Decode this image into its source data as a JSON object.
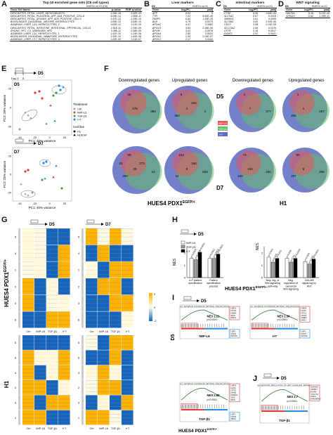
{
  "panels": {
    "A": "A",
    "B": "B",
    "C": "C",
    "D": "D",
    "E": "E",
    "F": "F",
    "G": "G",
    "H": "H",
    "I": "I",
    "J": "J"
  },
  "tableA": {
    "title": "Top-10 enriched gene sets (C8 cell types)",
    "group": "HUES4 vs H1 (D5)",
    "cols": [
      "Gene Set Name",
      "p-value",
      "FDR q-value"
    ],
    "rows": [
      [
        "DESCARTES_FETAL_LIVER_HEPATOBLASTS",
        "4.26E-18",
        "3.00E-15"
      ],
      [
        "DESCARTES_FETAL_PLACENTA_AFP_ALB_POSITIVE_CELLS",
        "8.09E-14",
        "2.85E-11"
      ],
      [
        "DESCARTES_FETAL_SPLEEN_AFP_ALB_POSITIVE_CELLS",
        "4.47E-13",
        "1.05E-10"
      ],
      [
        "BUSSLINGER_DUODENAL_MATURE_ENTEROCYTES",
        "2.00E-12",
        "3.53E-10"
      ],
      [
        "AIZARANI_LIVER_C14_HEPATOCYTES_2",
        "3.62E-12",
        "5.11E-10"
      ],
      [
        "DESCARTES_FETAL_INTESTINE_INTESTINAL_EPITHELIAL_CELLS",
        "2.51E-11",
        "2.94E-09"
      ],
      [
        "ZHONG_PFC_C3_UNKNOWN_NPC",
        "3.36E-11",
        "3.38E-09"
      ],
      [
        "AIZARANI_LIVER_C11_HEPATOCYTES_1",
        "1.41E-10",
        "1.24E-08"
      ],
      [
        "BUSSLINGER_DUODENAL_IMMATURE_ENTEROCYTES",
        "2.32E-10",
        "1.82E-08"
      ],
      [
        "AIZARANI_LIVER_C17_HEPATOCYTES_3",
        "1.43E-09",
        "1.01E-07"
      ]
    ]
  },
  "tableB": {
    "title": "Liver markers",
    "d": "D5",
    "group": "HUES4 vs H1",
    "cols": [
      "Gene",
      "log2FC",
      "padj"
    ],
    "rows": [
      [
        "AFP",
        "8.04",
        "0"
      ],
      [
        "TTR",
        "7.22",
        "5.50E-49"
      ],
      [
        "FABP1",
        "6.64",
        "1.93E-15"
      ],
      [
        "ALB",
        "4.79",
        "0.0273"
      ],
      [
        "APOA2",
        "4.47",
        "0.0062"
      ],
      [
        "APOC3",
        "3.53",
        "2.28E-05"
      ],
      [
        "APOM",
        "3.02",
        "0.0076"
      ],
      [
        "APOA4",
        "2.80",
        "0.0022"
      ],
      [
        "APOA1",
        "2.33",
        "2.24E-07"
      ],
      [
        "APOC1",
        "2.17",
        "0.0164"
      ]
    ]
  },
  "tableC": {
    "title": "Intestinal markers",
    "d": "D5",
    "group": "HUES4 vs H1",
    "cols": [
      "Gene",
      "log2FC",
      "padj"
    ],
    "rows": [
      [
        "CTSE",
        "6.96",
        "1.64E-05"
      ],
      [
        "SLC5A1",
        "5.67",
        "0.0025"
      ],
      [
        "SMIM24",
        "3.61",
        "0.0059"
      ],
      [
        "SLC9A1",
        "3.60",
        "2.10E-06"
      ],
      [
        "CDX2",
        "3.08",
        "2.91E-05"
      ],
      [
        "SLC13A2",
        "2.54",
        "0.0275"
      ],
      [
        "CFTR",
        "2.16",
        "0.0017"
      ],
      [
        "DGAT1",
        "2.01",
        "0.0041"
      ]
    ]
  },
  "tableD": {
    "title": "WNT signaling",
    "d": "D5",
    "group": "HUES4 vs H1",
    "cols": [
      "Gene",
      "log2FC",
      "padj"
    ],
    "rows": [
      [
        "WNT5A",
        "-5.18",
        "8.21E-10"
      ],
      [
        "SHISA3",
        "-5.62",
        "1.45E-11"
      ]
    ]
  },
  "panelE": {
    "top": {
      "day": "D5",
      "xlabel": "PC1: 40% variance",
      "ylabel": "PC2: 28% variance",
      "xticks": [
        "-40",
        "-20",
        "0",
        "20"
      ],
      "yticks": [
        "20",
        "0",
        "-20"
      ]
    },
    "bottom": {
      "day": "D7",
      "xlabel": "PC1: 46% variance",
      "ylabel": "PC2: 25% variance",
      "xticks": [
        "-40",
        "-20",
        "0",
        "20"
      ],
      "yticks": [
        "20",
        "0",
        "-20"
      ]
    },
    "timeline": {
      "day0": "Day 3",
      "day1": "5",
      "end_top": "D5",
      "end_bottom": "D7"
    },
    "legend": {
      "treatment_title": "Treatment",
      "treatments": [
        "Ctrl",
        "IWP-L6",
        "TGF-β1",
        "I+T"
      ],
      "line_title": "Cell line",
      "lines": [
        "H1",
        "HUES4"
      ]
    },
    "colors": {
      "Ctrl": "#9e9e9e",
      "IWP-L6": "#e53935",
      "TGF-β1": "#43a047",
      "I+T": "#1e88e5"
    }
  },
  "panelF": {
    "down": "Downregulated genes",
    "up": "Upregulated genes",
    "d5": "D5",
    "d7": "D7",
    "legend": [
      "IWP-L6",
      "TGF-β1",
      "I+T"
    ],
    "left_label": "HUES4 PDX1",
    "left_sup": "EGFP/+",
    "right_label": "H1",
    "hues4_d5_down": [
      "26",
      "276",
      "394"
    ],
    "hues4_d5_up": [
      "6",
      "2",
      "4",
      "360",
      "344"
    ],
    "h1_d5_down": [
      "2",
      "7",
      "377"
    ],
    "h1_d5_up": [
      "1",
      "1",
      "257",
      "205"
    ],
    "hues4_d7_down": [
      "69",
      "29",
      "10",
      "300",
      "373",
      "15"
    ],
    "hues4_d7_up": [
      "154",
      "8",
      "533",
      "24",
      "160"
    ],
    "h1_d7_down": [
      "73",
      "100",
      "250",
      "248"
    ],
    "h1_d7_up": [
      "80",
      "6",
      "355",
      "207"
    ]
  },
  "panelG": {
    "d5": "D5",
    "d7": "D7",
    "y_top": "HUES4 PDX1",
    "y_top_sup": "EGFP/+",
    "y_bottom": "H1",
    "cols_d5": [
      "Ctrl",
      "IWP-L6",
      "TGF-β1",
      "I+T"
    ],
    "cols_d7": [
      "Ctrl",
      "IWP-L6",
      "TGF-β1",
      "I+T"
    ],
    "clusters_top": [
      "5",
      "4",
      "1",
      "2",
      "3",
      "6"
    ],
    "clusters_bottom": [
      "5",
      "6",
      "4",
      "2",
      "3",
      "1"
    ],
    "scale": [
      "-2",
      "0",
      "2"
    ]
  },
  "panelH": {
    "ylabel": "NES",
    "legend": [
      "IWP-L6",
      "TGF-β1",
      "I+T"
    ],
    "left_cats": [
      "A-P pattern specification",
      "Pattern specification process"
    ],
    "right_cats": [
      "Neg. reg. of Wnt-signaling path-way",
      "Neg. regulation of canonical Wnt-signaling",
      "Cell-cell signal-ing by Wnt"
    ],
    "left_values": [
      [
        1.55,
        1.45,
        2.05
      ],
      [
        1.55,
        1.55,
        1.9
      ]
    ],
    "right_values": [
      [
        1.65,
        1.25,
        1.55
      ],
      [
        1.55,
        1.25,
        1.55
      ],
      [
        1.3,
        1.1,
        1.5
      ]
    ],
    "left_p": [
      "p=0.0002",
      "p=0.0007",
      "p<0.0001",
      "p<0.0001",
      "p<0.0001",
      "p<0.0001"
    ],
    "right_p": [
      "p=0.001",
      "p=0.002",
      "p=0.001",
      "p=0.006",
      "p=0.01",
      "p=0.0002",
      "p=0.009",
      "p=0.002",
      "p<0.0001"
    ],
    "left_yticks": [
      "2",
      "1",
      "0"
    ],
    "right_yticks": [
      "2",
      "1",
      "0"
    ],
    "caption": "HUES4 PDX1",
    "caption_sup": "EGFP/+"
  },
  "panelI": {
    "day": "D5",
    "plots": [
      {
        "title": "GO_ANTERIOR_POSTERIOR_PATTERN_SPECIFICATION",
        "nes": "NES 2.21",
        "p": "p<0.0001",
        "label": "IWP-L6",
        "top_genes": [
          "CER1",
          "OTX2",
          "HHEX",
          "SIX3",
          "DKK1"
        ],
        "bot_genes": [
          "LEF1",
          "CDX1",
          "KRT20"
        ]
      },
      {
        "title": "GO_ANTERIOR_POSTERIOR_PATTERN_SPECIFICATION",
        "nes": "NES 2.36",
        "p": "p<0.0001",
        "label": "I+T",
        "top_genes": [
          "CER1",
          "LHX1",
          "OTX1",
          "OTX2",
          "HHEX",
          "DKK1"
        ],
        "bot_genes": [
          "LEF1",
          "CDX1",
          "KRT20"
        ]
      },
      {
        "title": "GO_ANTERIOR_POSTERIOR_PATTERN_SPECIFICATION",
        "nes": "NES 2.82",
        "p": "p<0.0001",
        "label": "TGF-β1",
        "top_genes": [
          "CER1",
          "LHX1",
          "OTX1",
          "OTX2",
          "NODAL",
          "SIX3",
          "SIX3"
        ],
        "bot_genes": [
          "LEF1",
          "CDX2",
          "TBX3"
        ]
      }
    ],
    "caption": "HUES4 PDX1",
    "caption_sup": "EGFP/+"
  },
  "panelJ": {
    "day": "D5",
    "title": "GO_NEGATIVE_REGULATION_OF_WNT_SIGNALING_PATHWAY",
    "nes": "NES 2.7",
    "p": "p<0.0001",
    "label": "TGF-β1",
    "genes": [
      "SHISA2",
      "SFRP1",
      "ROR2",
      "TCF7L2",
      "DKK1",
      "KREMEN2"
    ]
  }
}
